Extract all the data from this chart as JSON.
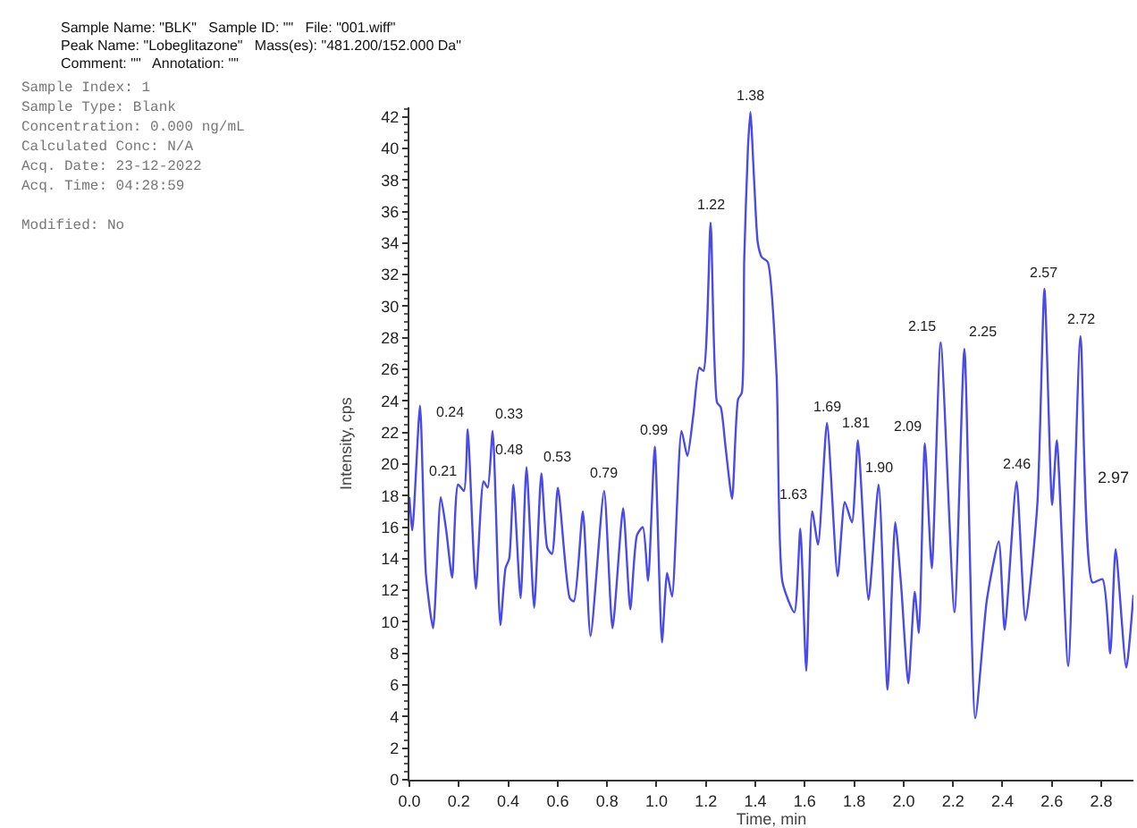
{
  "chart_data": {
    "type": "line",
    "xlabel": "Time, min",
    "ylabel": "Intensity, cps",
    "xlim": [
      0,
      2.93
    ],
    "xticks": [
      {
        "value": 0,
        "label": "0.0"
      },
      {
        "value": 0.2,
        "label": "0.2"
      },
      {
        "value": 0.4,
        "label": "0.4"
      },
      {
        "value": 0.6,
        "label": "0.6"
      },
      {
        "value": 0.8,
        "label": "0.8"
      },
      {
        "value": 1.0,
        "label": "1.0"
      },
      {
        "value": 1.2,
        "label": "1.2"
      },
      {
        "value": 1.4,
        "label": "1.4"
      },
      {
        "value": 1.6,
        "label": "1.6"
      },
      {
        "value": 1.8,
        "label": "1.8"
      },
      {
        "value": 2.0,
        "label": "2.0"
      },
      {
        "value": 2.2,
        "label": "2.2"
      },
      {
        "value": 2.4,
        "label": "2.4"
      },
      {
        "value": 2.6,
        "label": "2.6"
      },
      {
        "value": 2.8,
        "label": "2.8"
      }
    ],
    "ylim": [
      0,
      42.6
    ],
    "yticks": [
      0,
      2,
      4,
      6,
      8,
      10,
      12,
      14,
      16,
      18,
      20,
      22,
      24,
      26,
      28,
      30,
      32,
      34,
      36,
      38,
      40,
      42
    ],
    "marker": "none",
    "line_style": "solid",
    "series": [
      {
        "color": "#4a4ae8",
        "x": [
          0,
          0.012,
          0.043,
          0.067,
          0.096,
          0.127,
          0.149,
          0.173,
          0.197,
          0.221,
          0.236,
          0.269,
          0.3,
          0.317,
          0.337,
          0.368,
          0.389,
          0.404,
          0.421,
          0.45,
          0.474,
          0.505,
          0.534,
          0.558,
          0.577,
          0.601,
          0.649,
          0.666,
          0.702,
          0.733,
          0.788,
          0.822,
          0.865,
          0.894,
          0.921,
          0.945,
          0.966,
          0.993,
          1.022,
          1.043,
          1.063,
          1.101,
          1.125,
          1.149,
          1.173,
          1.19,
          1.219,
          1.245,
          1.26,
          1.28,
          1.306,
          1.33,
          1.345,
          1.355,
          1.37,
          1.38,
          1.395,
          1.41,
          1.426,
          1.45,
          1.486,
          1.51,
          1.558,
          1.582,
          1.606,
          1.63,
          1.654,
          1.69,
          1.733,
          1.762,
          1.791,
          1.815,
          1.858,
          1.899,
          1.935,
          1.966,
          1.99,
          2.019,
          2.045,
          2.062,
          2.086,
          2.114,
          2.15,
          2.206,
          2.246,
          2.29,
          2.337,
          2.385,
          2.409,
          2.457,
          2.493,
          2.541,
          2.57,
          2.601,
          2.62,
          2.666,
          2.716,
          2.764,
          2.805,
          2.836,
          2.858,
          2.901,
          2.93
        ],
        "values": [
          17.9,
          15.8,
          23.7,
          13,
          9.6,
          17.9,
          15.8,
          12.8,
          18.7,
          18.3,
          22.2,
          12.1,
          18.9,
          18.5,
          22.1,
          9.8,
          13.4,
          14,
          18.7,
          11.5,
          19.8,
          10.9,
          19.4,
          14.7,
          14.3,
          18.5,
          11.5,
          11.3,
          17,
          9.1,
          18.3,
          9.6,
          17.2,
          10.8,
          15.5,
          16,
          12.6,
          21.1,
          8.7,
          13.1,
          11.6,
          22.1,
          20.5,
          23.1,
          26.1,
          25.9,
          35.3,
          23.9,
          23.6,
          21,
          17.8,
          24.1,
          24.5,
          33,
          40,
          42.3,
          38,
          34,
          33.1,
          32.8,
          25.6,
          12.5,
          10.6,
          15.9,
          6.9,
          17,
          14.9,
          22.6,
          12.9,
          17.6,
          16.3,
          21.5,
          11.4,
          18.7,
          5.7,
          16.3,
          12.3,
          6.1,
          11.9,
          9.3,
          21.3,
          13.4,
          27.7,
          10.6,
          27.3,
          3.9,
          11.4,
          15.1,
          9.5,
          18.9,
          10.1,
          17.4,
          31.1,
          17.4,
          21.5,
          7.2,
          28.1,
          12.5,
          12.7,
          8,
          14.6,
          7.1,
          11.7
        ]
      }
    ],
    "annotations": [
      "Sample Name: \"BLK\"   Sample ID: \"\"   File: \"001.wiff\"",
      "Peak Name: \"Lobeglitazone\"   Mass(es): \"481.200/152.000 Da\"",
      "Comment: \"\"   Annotation: \"\"",
      "Sample Index: 1",
      "Sample Type: Blank",
      "Concentration: 0.000 ng/mL",
      "Calculated Conc: N/A",
      "Acq. Date: 23-12-2022",
      "Acq. Time: 04:28:59",
      "Modified: No",
      "2.97",
      {
        "text": "0.21",
        "x": 0.21,
        "y": 18.5
      },
      {
        "text": "0.24",
        "x": 0.24,
        "y": 22.2
      },
      {
        "text": "0.33",
        "x": 0.33,
        "y": 22.1
      },
      {
        "text": "0.48",
        "x": 0.48,
        "y": 19.8
      },
      {
        "text": "0.53",
        "x": 0.53,
        "y": 19.4
      },
      {
        "text": "0.79",
        "x": 0.79,
        "y": 18.3
      },
      {
        "text": "0.99",
        "x": 0.99,
        "y": 21.1
      },
      {
        "text": "1.22",
        "x": 1.22,
        "y": 35.3
      },
      {
        "text": "1.38",
        "x": 1.38,
        "y": 42.3
      },
      {
        "text": "1.63",
        "x": 1.63,
        "y": 17
      },
      {
        "text": "1.69",
        "x": 1.69,
        "y": 22.6
      },
      {
        "text": "1.81",
        "x": 1.81,
        "y": 21.5
      },
      {
        "text": "1.90",
        "x": 1.9,
        "y": 18.7
      },
      {
        "text": "2.09",
        "x": 2.09,
        "y": 21.3
      },
      {
        "text": "2.15",
        "x": 2.15,
        "y": 27.7
      },
      {
        "text": "2.25",
        "x": 2.25,
        "y": 27.3
      },
      {
        "text": "2.46",
        "x": 2.46,
        "y": 18.9
      },
      {
        "text": "2.57",
        "x": 2.57,
        "y": 31.1
      },
      {
        "text": "2.72",
        "x": 2.72,
        "y": 28.1
      }
    ]
  }
}
